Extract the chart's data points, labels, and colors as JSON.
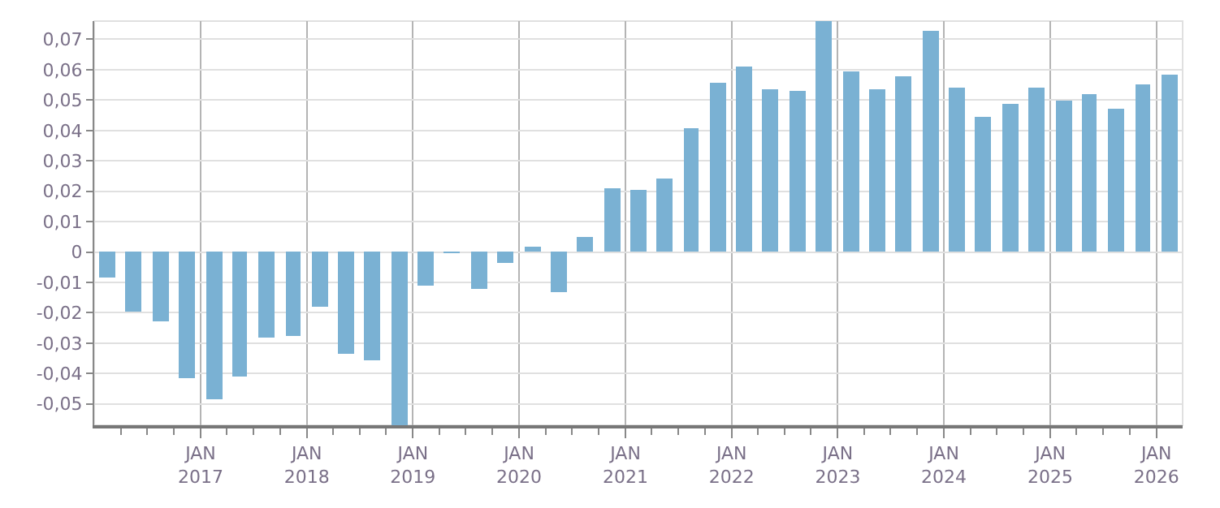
{
  "chart_data": {
    "type": "bar",
    "color": "#7ab1d3",
    "x": [
      "2016-02-15",
      "2016-05-15",
      "2016-08-15",
      "2016-11-15",
      "2017-02-15",
      "2017-05-15",
      "2017-08-15",
      "2017-11-15",
      "2018-02-15",
      "2018-05-15",
      "2018-08-15",
      "2018-11-15",
      "2019-02-15",
      "2019-05-15",
      "2019-08-15",
      "2019-11-15",
      "2020-02-15",
      "2020-05-15",
      "2020-08-15",
      "2020-11-15",
      "2021-02-15",
      "2021-05-15",
      "2021-08-15",
      "2021-11-15",
      "2022-02-15",
      "2022-05-15",
      "2022-08-15",
      "2022-11-15",
      "2023-02-15",
      "2023-05-15",
      "2023-08-15",
      "2023-11-15",
      "2024-02-15",
      "2024-05-15",
      "2024-08-15",
      "2024-11-15",
      "2025-02-15",
      "2025-05-15",
      "2025-08-15",
      "2025-11-15",
      "2026-02-15"
    ],
    "values": [
      -0.0083,
      -0.0198,
      -0.0228,
      -0.0413,
      -0.0483,
      -0.0408,
      -0.0283,
      -0.0278,
      -0.0178,
      -0.0333,
      -0.0358,
      -0.057,
      -0.0113,
      -0.0003,
      -0.0123,
      -0.0038,
      0.002,
      -0.0133,
      0.005,
      0.021,
      0.0205,
      0.024,
      0.0405,
      0.0555,
      0.061,
      0.0535,
      0.053,
      0.076,
      0.0595,
      0.0535,
      0.058,
      0.073,
      0.054,
      0.0445,
      0.049,
      0.054,
      0.05,
      0.052,
      0.047,
      0.055,
      0.0585
    ],
    "xlim": [
      "2016-01-01",
      "2026-04-01"
    ],
    "xticks": [
      {
        "value": "2016-04-01",
        "label": null
      },
      {
        "value": "2016-07-01",
        "label": null
      },
      {
        "value": "2016-10-01",
        "label": null
      },
      {
        "value": "2017-01-01",
        "label": "JAN\n2017"
      },
      {
        "value": "2017-04-01",
        "label": null
      },
      {
        "value": "2017-07-01",
        "label": null
      },
      {
        "value": "2017-10-01",
        "label": null
      },
      {
        "value": "2018-01-01",
        "label": "JAN\n2018"
      },
      {
        "value": "2018-04-01",
        "label": null
      },
      {
        "value": "2018-07-01",
        "label": null
      },
      {
        "value": "2018-10-01",
        "label": null
      },
      {
        "value": "2019-01-01",
        "label": "JAN\n2019"
      },
      {
        "value": "2019-04-01",
        "label": null
      },
      {
        "value": "2019-07-01",
        "label": null
      },
      {
        "value": "2019-10-01",
        "label": null
      },
      {
        "value": "2020-01-01",
        "label": "JAN\n2020"
      },
      {
        "value": "2020-04-01",
        "label": null
      },
      {
        "value": "2020-07-01",
        "label": null
      },
      {
        "value": "2020-10-01",
        "label": null
      },
      {
        "value": "2021-01-01",
        "label": "JAN\n2021"
      },
      {
        "value": "2021-04-01",
        "label": null
      },
      {
        "value": "2021-07-01",
        "label": null
      },
      {
        "value": "2021-10-01",
        "label": null
      },
      {
        "value": "2022-01-01",
        "label": "JAN\n2022"
      },
      {
        "value": "2022-04-01",
        "label": null
      },
      {
        "value": "2022-07-01",
        "label": null
      },
      {
        "value": "2022-10-01",
        "label": null
      },
      {
        "value": "2023-01-01",
        "label": "JAN\n2023"
      },
      {
        "value": "2023-04-01",
        "label": null
      },
      {
        "value": "2023-07-01",
        "label": null
      },
      {
        "value": "2023-10-01",
        "label": null
      },
      {
        "value": "2024-01-01",
        "label": "JAN\n2024"
      },
      {
        "value": "2024-04-01",
        "label": null
      },
      {
        "value": "2024-07-01",
        "label": null
      },
      {
        "value": "2024-10-01",
        "label": null
      },
      {
        "value": "2025-01-01",
        "label": "JAN\n2025"
      },
      {
        "value": "2025-04-01",
        "label": null
      },
      {
        "value": "2025-07-01",
        "label": null
      },
      {
        "value": "2025-10-01",
        "label": null
      },
      {
        "value": "2026-01-01",
        "label": "JAN\n2026"
      }
    ],
    "ylim": [
      -0.057,
      0.076
    ],
    "yticks": [
      {
        "value": -0.05,
        "label": "-0,05"
      },
      {
        "value": -0.04,
        "label": "-0,04"
      },
      {
        "value": -0.03,
        "label": "-0,03"
      },
      {
        "value": -0.02,
        "label": "-0,02"
      },
      {
        "value": -0.01,
        "label": "-0,01"
      },
      0,
      {
        "value": 0.01,
        "label": "0,01"
      },
      {
        "value": 0.02,
        "label": "0,02"
      },
      {
        "value": 0.03,
        "label": "0,03"
      },
      {
        "value": 0.04,
        "label": "0,04"
      },
      {
        "value": 0.05,
        "label": "0,05"
      },
      {
        "value": 0.06,
        "label": "0,06"
      },
      {
        "value": 0.07,
        "label": "0,07"
      }
    ],
    "grid": true
  }
}
